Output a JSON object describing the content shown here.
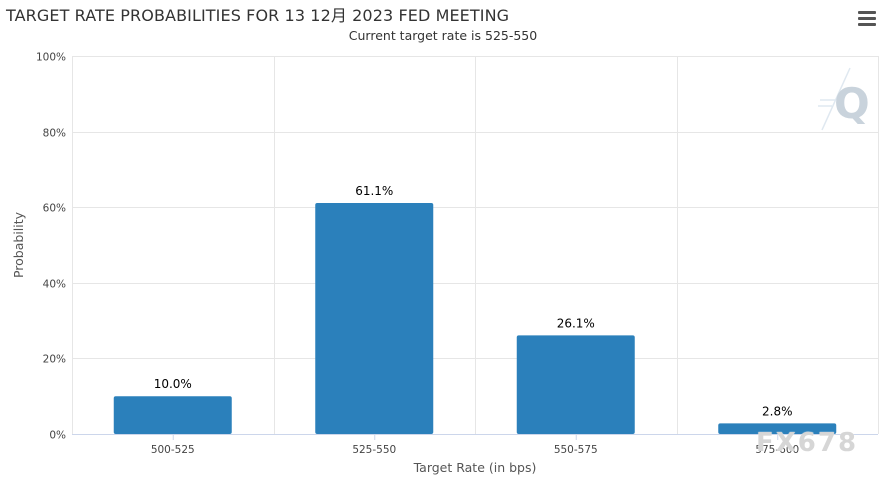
{
  "header": {
    "title": "TARGET RATE PROBABILITIES FOR 13 12月 2023 FED MEETING",
    "subtitle": "Current target rate is 525-550"
  },
  "icons": {
    "menu": "hamburger-menu-icon",
    "logo": "q-logo-icon"
  },
  "watermark": "FX678",
  "colors": {
    "bar": "#2b80bb",
    "grid": "#e6e6e6",
    "axis": "#ccd6eb"
  },
  "chart_data": {
    "type": "bar",
    "categories": [
      "500-525",
      "525-550",
      "550-575",
      "575-600"
    ],
    "values": [
      10.0,
      61.1,
      26.1,
      2.8
    ],
    "data_labels": [
      "10.0%",
      "61.1%",
      "26.1%",
      "2.8%"
    ],
    "title": "TARGET RATE PROBABILITIES FOR 13 12月 2023 FED MEETING",
    "subtitle": "Current target rate is 525-550",
    "xlabel": "Target Rate (in bps)",
    "ylabel": "Probability",
    "ylim": [
      0,
      100
    ],
    "yticks": [
      "0%",
      "20%",
      "40%",
      "60%",
      "80%",
      "100%"
    ],
    "ytick_values": [
      0,
      20,
      40,
      60,
      80,
      100
    ],
    "grid": true,
    "legend": "none"
  }
}
